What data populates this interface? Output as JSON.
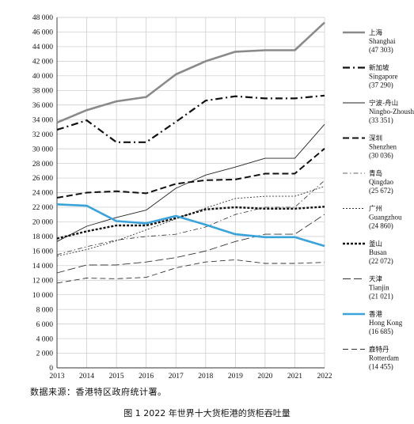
{
  "chart_data": {
    "type": "line",
    "title": "",
    "xlabel": "",
    "ylabel": "",
    "x": [
      2013,
      2014,
      2015,
      2016,
      2017,
      2018,
      2019,
      2020,
      2021,
      2022
    ],
    "ylim": [
      0,
      48000
    ],
    "yticks": [
      0,
      2000,
      4000,
      6000,
      8000,
      10000,
      12000,
      14000,
      16000,
      18000,
      20000,
      22000,
      24000,
      26000,
      28000,
      30000,
      32000,
      34000,
      36000,
      38000,
      40000,
      42000,
      44000,
      46000,
      48000
    ],
    "ytick_labels": [
      "0",
      "2 000",
      "4 000",
      "6 000",
      "8 000",
      "10 000",
      "12 000",
      "14 000",
      "16 000",
      "18 000",
      "20 000",
      "22 000",
      "24 000",
      "26 000",
      "28 000",
      "30 000",
      "32 000",
      "34 000",
      "36 000",
      "38 000",
      "40 000",
      "42 000",
      "44 000",
      "46 000",
      "48 000"
    ],
    "grid": true,
    "legend_position": "right",
    "series": [
      {
        "name": "Shanghai",
        "name_cn": "上海",
        "value_label": "(47 303)",
        "color": "#8a8a8a",
        "style": "solid-thick",
        "values": [
          33600,
          35300,
          36500,
          37100,
          40200,
          42000,
          43300,
          43500,
          43500,
          47303
        ]
      },
      {
        "name": "Singapore",
        "name_cn": "新加坡",
        "value_label": "(37 290)",
        "color": "#111111",
        "style": "dashdot-thick",
        "values": [
          32600,
          33900,
          30900,
          30900,
          33700,
          36600,
          37200,
          36900,
          36900,
          37290
        ]
      },
      {
        "name": "Ningbo-Zhoushan",
        "name_cn": "宁波-舟山",
        "value_label": "(33 351)",
        "color": "#222222",
        "style": "solid-thin",
        "values": [
          17300,
          19400,
          20600,
          21600,
          24600,
          26400,
          27500,
          28700,
          28700,
          33351
        ]
      },
      {
        "name": "Shenzhen",
        "name_cn": "深圳",
        "value_label": "(30 036)",
        "color": "#111111",
        "style": "dashed-thick",
        "values": [
          23300,
          24000,
          24200,
          23900,
          25200,
          25700,
          25800,
          26600,
          26600,
          30036
        ]
      },
      {
        "name": "Qingdao",
        "name_cn": "青岛",
        "value_label": "(25 672)",
        "color": "#333333",
        "style": "dashdot-thin",
        "values": [
          15500,
          16600,
          17500,
          18000,
          18300,
          19300,
          21000,
          22000,
          22000,
          25672
        ]
      },
      {
        "name": "Guangzhou",
        "name_cn": "广州",
        "value_label": "(24 860)",
        "color": "#333333",
        "style": "dotted-thin",
        "values": [
          15300,
          16200,
          17400,
          18900,
          20400,
          21900,
          23200,
          23500,
          23500,
          24860
        ]
      },
      {
        "name": "Busan",
        "name_cn": "釜山",
        "value_label": "(22 072)",
        "color": "#111111",
        "style": "dotted-thick",
        "values": [
          17700,
          18700,
          19500,
          19500,
          20500,
          21700,
          22000,
          21800,
          21800,
          22072
        ]
      },
      {
        "name": "Tianjin",
        "name_cn": "天津",
        "value_label": "(21 021)",
        "color": "#333333",
        "style": "longdash-thin",
        "values": [
          13000,
          14100,
          14100,
          14500,
          15100,
          16000,
          17300,
          18300,
          18300,
          21021
        ]
      },
      {
        "name": "Hong Kong",
        "name_cn": "香港",
        "value_label": "(16 685)",
        "color": "#3aa3dc",
        "style": "solid-thick",
        "values": [
          22400,
          22200,
          20100,
          19800,
          20800,
          19600,
          18300,
          17900,
          17900,
          16685
        ]
      },
      {
        "name": "Rotterdam",
        "name_cn": "鹿特丹",
        "value_label": "(14 455)",
        "color": "#333333",
        "style": "dashed-thin",
        "values": [
          11600,
          12300,
          12200,
          12400,
          13700,
          14500,
          14800,
          14300,
          14300,
          14455
        ]
      }
    ]
  },
  "source_note": "数据来源：香港特区政府统计署。",
  "caption": "图 1   2022 年世界十大货柜港的货柜吞吐量"
}
